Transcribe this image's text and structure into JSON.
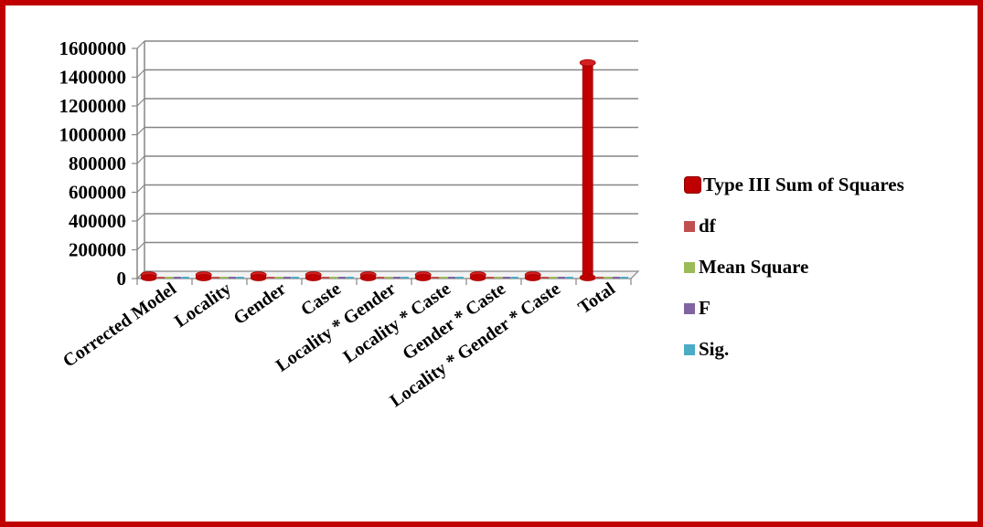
{
  "chart_data": {
    "type": "bar",
    "categories": [
      "Corrected Model",
      "Locality",
      "Gender",
      "Caste",
      "Locality * Gender",
      "Locality * Caste",
      "Gender * Caste",
      "Locality * Gender * Caste",
      "Total"
    ],
    "series": [
      {
        "name": "Type III Sum of Squares",
        "color": "#c00000",
        "values": [
          4000,
          3000,
          3000,
          3000,
          3000,
          3000,
          3000,
          3000,
          1500000
        ]
      },
      {
        "name": "df",
        "color": "#c0504d",
        "values": [
          0,
          0,
          0,
          0,
          0,
          0,
          0,
          0,
          0
        ]
      },
      {
        "name": "Mean Square",
        "color": "#9bbb59",
        "values": [
          0,
          0,
          0,
          0,
          0,
          0,
          0,
          0,
          0
        ]
      },
      {
        "name": "F",
        "color": "#8064a2",
        "values": [
          0,
          0,
          0,
          0,
          0,
          0,
          0,
          0,
          0
        ]
      },
      {
        "name": "Sig.",
        "color": "#4bacc6",
        "values": [
          0,
          0,
          0,
          0,
          0,
          0,
          0,
          0,
          0
        ]
      }
    ],
    "yticks": [
      "0",
      "200000",
      "400000",
      "600000",
      "800000",
      "1000000",
      "1200000",
      "1400000",
      "1600000"
    ],
    "ylim": [
      0,
      1600000
    ],
    "grid": true,
    "legend": "right"
  }
}
